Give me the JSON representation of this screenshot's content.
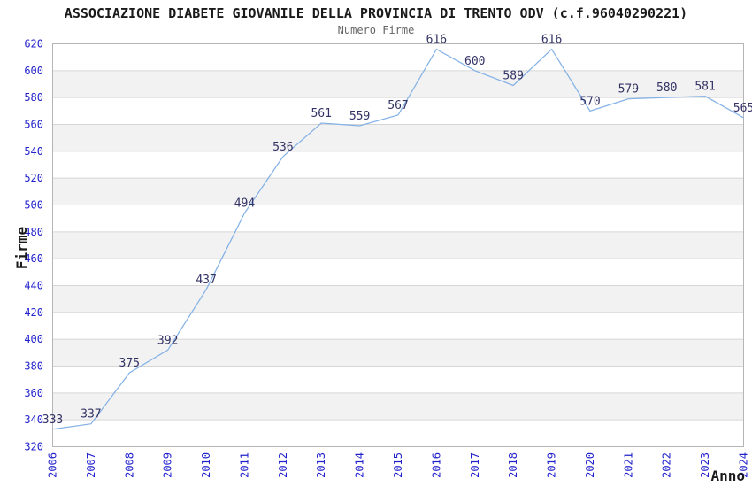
{
  "header": {
    "title": "ASSOCIAZIONE DIABETE GIOVANILE DELLA PROVINCIA DI TRENTO ODV (c.f.96040290221)",
    "subtitle": "Numero Firme"
  },
  "chart_data": {
    "type": "line",
    "title": "ASSOCIAZIONE DIABETE GIOVANILE DELLA PROVINCIA DI TRENTO ODV (c.f.96040290221)",
    "subtitle": "Numero Firme",
    "categories": [
      "2006",
      "2007",
      "2008",
      "2009",
      "2010",
      "2011",
      "2012",
      "2013",
      "2014",
      "2015",
      "2016",
      "2017",
      "2018",
      "2019",
      "2020",
      "2021",
      "2022",
      "2023",
      "2024"
    ],
    "series": [
      {
        "name": "Numero Firme",
        "values": [
          333,
          337,
          375,
          392,
          437,
          494,
          536,
          561,
          559,
          567,
          616,
          600,
          589,
          616,
          570,
          579,
          580,
          581,
          565
        ]
      }
    ],
    "xlabel": "Anno",
    "ylabel": "Firme",
    "ylim": [
      320,
      620
    ],
    "ytick_step": 20,
    "grid": "horizontal-gridlines-with-alternating-bands",
    "legend": "none",
    "data_labels_visible": true,
    "colors": {
      "line": "#85b2e6",
      "data_label": "#333366",
      "tick_label": "#2222cc",
      "band_alt": "#f2f2f2",
      "band_base": "#ffffff",
      "grid_line": "#d6d6d6",
      "plot_border": "#b5b5b5",
      "title": "#1a1a1a",
      "subtitle": "#666666",
      "axis_title": "#1a1a1a"
    }
  }
}
